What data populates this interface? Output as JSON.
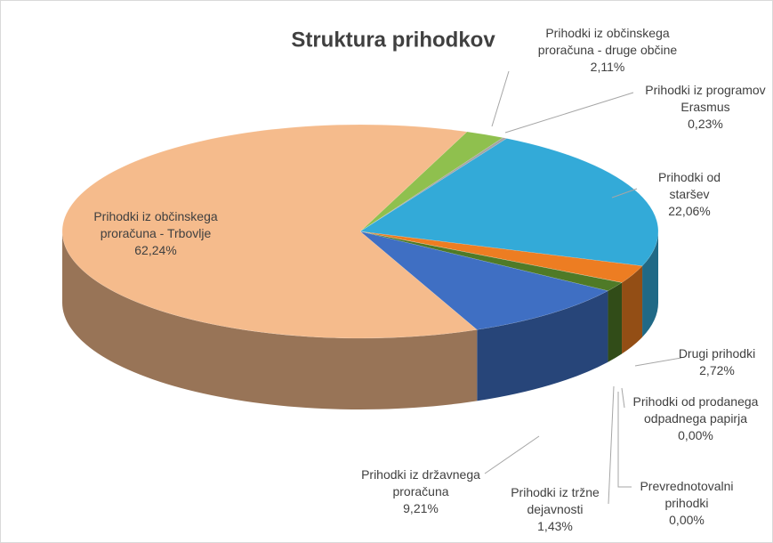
{
  "chart_data": {
    "type": "pie",
    "title": "Struktura prihodkov",
    "categories": [
      "Prihodki iz občinskega proračuna - druge občine",
      "Prihodki iz programov Erasmus",
      "Prihodki od staršev",
      "Drugi prihodki",
      "Prihodki od prodanega odpadnega papirja",
      "Prevrednotovalni prihodki",
      "Prihodki iz tržne dejavnosti",
      "Prihodki iz državnega proračuna",
      "Prihodki iz občinskega proračuna - Trbovlje"
    ],
    "values": [
      2.11,
      0.23,
      22.06,
      2.72,
      0.0,
      0.0,
      1.43,
      9.21,
      62.24
    ],
    "value_labels": [
      "2,11%",
      "0,23%",
      "22,06%",
      "2,72%",
      "0,00%",
      "0,00%",
      "1,43%",
      "9,21%",
      "62,24%"
    ],
    "colors": [
      "#8fc04e",
      "#a5a5a5",
      "#33aad8",
      "#ed7d22",
      "#7a5a3a",
      "#5b8a3a",
      "#4f7a27",
      "#3f6fc3",
      "#f5bb8c"
    ]
  }
}
